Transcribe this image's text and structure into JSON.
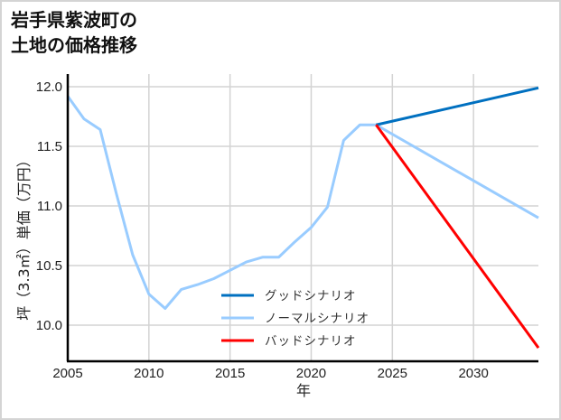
{
  "title_lines": [
    "岩手県紫波町の",
    "土地の価格推移"
  ],
  "chart_data": {
    "type": "line",
    "title": "岩手県紫波町の土地の価格推移",
    "xlabel": "年",
    "ylabel": "坪（3.3㎡）単価（万円）",
    "xlim": [
      2005,
      2034
    ],
    "ylim": [
      9.7,
      12.1
    ],
    "xticks": [
      2005,
      2010,
      2015,
      2020,
      2025,
      2030
    ],
    "yticks": [
      10.0,
      10.5,
      11.0,
      11.5,
      12.0
    ],
    "ytick_labels": [
      "10.0",
      "10.5",
      "11.0",
      "11.5",
      "12.0"
    ],
    "grid": true,
    "legend_position": "center-bottom (inside plot)",
    "historical": {
      "x": [
        2005,
        2006,
        2007,
        2008,
        2009,
        2010,
        2011,
        2012,
        2013,
        2014,
        2015,
        2016,
        2017,
        2018,
        2019,
        2020,
        2021,
        2022,
        2023,
        2024
      ],
      "values": [
        11.92,
        11.73,
        11.64,
        11.1,
        10.59,
        10.26,
        10.14,
        10.3,
        10.34,
        10.39,
        10.46,
        10.53,
        10.57,
        10.57,
        10.7,
        10.82,
        10.99,
        11.55,
        11.68,
        11.68
      ]
    },
    "series": [
      {
        "name": "グッドシナリオ",
        "color": "#0070c0",
        "x": [
          2024,
          2034
        ],
        "values": [
          11.68,
          11.99
        ]
      },
      {
        "name": "ノーマルシナリオ",
        "color": "#99ccff",
        "x": [
          2024,
          2034
        ],
        "values": [
          11.68,
          10.9
        ]
      },
      {
        "name": "バッドシナリオ",
        "color": "#ff0000",
        "x": [
          2024,
          2034
        ],
        "values": [
          11.68,
          9.81
        ]
      }
    ],
    "historical_color": "#99ccff"
  }
}
